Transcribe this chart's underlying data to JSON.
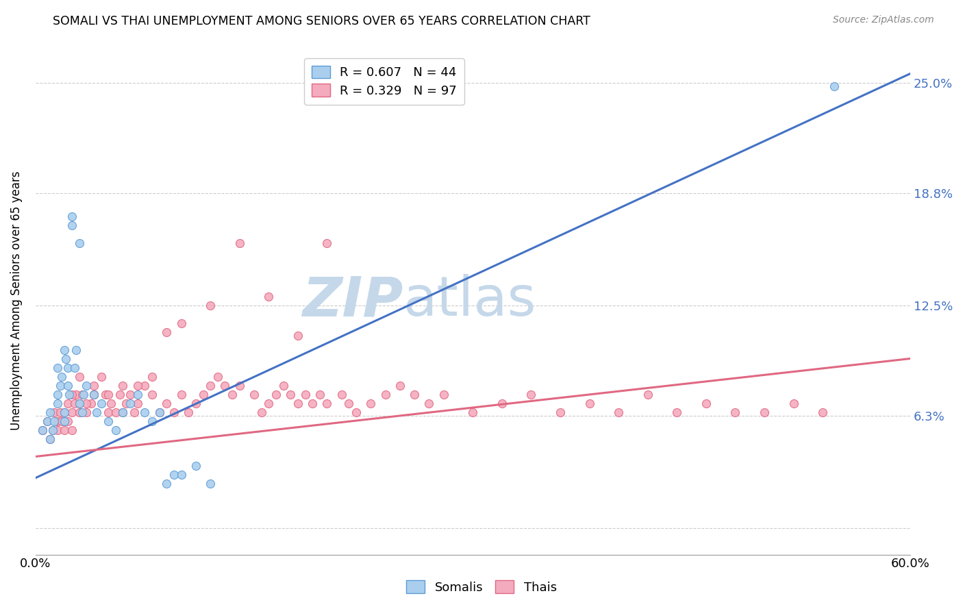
{
  "title": "SOMALI VS THAI UNEMPLOYMENT AMONG SENIORS OVER 65 YEARS CORRELATION CHART",
  "source": "Source: ZipAtlas.com",
  "ylabel": "Unemployment Among Seniors over 65 years",
  "xlim": [
    0.0,
    0.6
  ],
  "ylim": [
    -0.015,
    0.27
  ],
  "xticks": [
    0.0,
    0.1,
    0.2,
    0.3,
    0.4,
    0.5,
    0.6
  ],
  "xticklabels": [
    "0.0%",
    "",
    "",
    "",
    "",
    "",
    "60.0%"
  ],
  "ytick_positions": [
    0.0,
    0.063,
    0.125,
    0.188,
    0.25
  ],
  "ytick_labels": [
    "",
    "6.3%",
    "12.5%",
    "18.8%",
    "25.0%"
  ],
  "somali_color": "#aacfee",
  "thai_color": "#f4abbe",
  "somali_edge_color": "#5b9bd5",
  "thai_edge_color": "#e06882",
  "somali_line_color": "#4472c4",
  "thai_line_color": "#e06882",
  "somali_R": 0.607,
  "somali_N": 44,
  "thai_R": 0.329,
  "thai_N": 97,
  "watermark_zip": "ZIP",
  "watermark_atlas": "atlas",
  "watermark_color_zip": "#c5d8ea",
  "watermark_color_atlas": "#c5d8ea",
  "somali_line_x0": 0.0,
  "somali_line_y0": 0.028,
  "somali_line_x1": 0.6,
  "somali_line_y1": 0.255,
  "thai_line_x0": 0.0,
  "thai_line_y0": 0.04,
  "thai_line_x1": 0.6,
  "thai_line_y1": 0.095,
  "somali_x": [
    0.005,
    0.008,
    0.01,
    0.01,
    0.012,
    0.013,
    0.015,
    0.015,
    0.015,
    0.017,
    0.018,
    0.02,
    0.02,
    0.02,
    0.021,
    0.022,
    0.022,
    0.023,
    0.025,
    0.025,
    0.027,
    0.028,
    0.03,
    0.03,
    0.032,
    0.033,
    0.035,
    0.04,
    0.042,
    0.045,
    0.05,
    0.055,
    0.06,
    0.065,
    0.07,
    0.075,
    0.08,
    0.085,
    0.09,
    0.095,
    0.1,
    0.11,
    0.12,
    0.548
  ],
  "somali_y": [
    0.055,
    0.06,
    0.05,
    0.065,
    0.055,
    0.06,
    0.07,
    0.075,
    0.09,
    0.08,
    0.085,
    0.06,
    0.065,
    0.1,
    0.095,
    0.09,
    0.08,
    0.075,
    0.17,
    0.175,
    0.09,
    0.1,
    0.16,
    0.07,
    0.065,
    0.075,
    0.08,
    0.075,
    0.065,
    0.07,
    0.06,
    0.055,
    0.065,
    0.07,
    0.075,
    0.065,
    0.06,
    0.065,
    0.025,
    0.03,
    0.03,
    0.035,
    0.025,
    0.248
  ],
  "thai_x": [
    0.005,
    0.008,
    0.01,
    0.012,
    0.013,
    0.015,
    0.015,
    0.017,
    0.018,
    0.02,
    0.02,
    0.022,
    0.022,
    0.025,
    0.025,
    0.027,
    0.028,
    0.03,
    0.03,
    0.032,
    0.035,
    0.038,
    0.04,
    0.04,
    0.045,
    0.048,
    0.05,
    0.052,
    0.055,
    0.058,
    0.06,
    0.062,
    0.065,
    0.068,
    0.07,
    0.075,
    0.08,
    0.085,
    0.09,
    0.095,
    0.1,
    0.105,
    0.11,
    0.115,
    0.12,
    0.125,
    0.13,
    0.135,
    0.14,
    0.15,
    0.155,
    0.16,
    0.165,
    0.17,
    0.175,
    0.18,
    0.185,
    0.19,
    0.195,
    0.2,
    0.21,
    0.215,
    0.22,
    0.23,
    0.24,
    0.25,
    0.26,
    0.27,
    0.28,
    0.3,
    0.32,
    0.34,
    0.36,
    0.38,
    0.4,
    0.42,
    0.44,
    0.46,
    0.48,
    0.5,
    0.52,
    0.54,
    0.025,
    0.03,
    0.035,
    0.04,
    0.05,
    0.06,
    0.07,
    0.08,
    0.09,
    0.1,
    0.12,
    0.14,
    0.16,
    0.18,
    0.2
  ],
  "thai_y": [
    0.055,
    0.06,
    0.05,
    0.055,
    0.065,
    0.06,
    0.055,
    0.065,
    0.06,
    0.055,
    0.065,
    0.06,
    0.07,
    0.055,
    0.065,
    0.07,
    0.075,
    0.065,
    0.07,
    0.075,
    0.065,
    0.07,
    0.08,
    0.075,
    0.085,
    0.075,
    0.065,
    0.07,
    0.065,
    0.075,
    0.065,
    0.07,
    0.075,
    0.065,
    0.07,
    0.08,
    0.075,
    0.065,
    0.07,
    0.065,
    0.075,
    0.065,
    0.07,
    0.075,
    0.08,
    0.085,
    0.08,
    0.075,
    0.08,
    0.075,
    0.065,
    0.07,
    0.075,
    0.08,
    0.075,
    0.07,
    0.075,
    0.07,
    0.075,
    0.07,
    0.075,
    0.07,
    0.065,
    0.07,
    0.075,
    0.08,
    0.075,
    0.07,
    0.075,
    0.065,
    0.07,
    0.075,
    0.065,
    0.07,
    0.065,
    0.075,
    0.065,
    0.07,
    0.065,
    0.065,
    0.07,
    0.065,
    0.075,
    0.085,
    0.07,
    0.075,
    0.075,
    0.08,
    0.08,
    0.085,
    0.11,
    0.115,
    0.125,
    0.16,
    0.13,
    0.108,
    0.16
  ]
}
